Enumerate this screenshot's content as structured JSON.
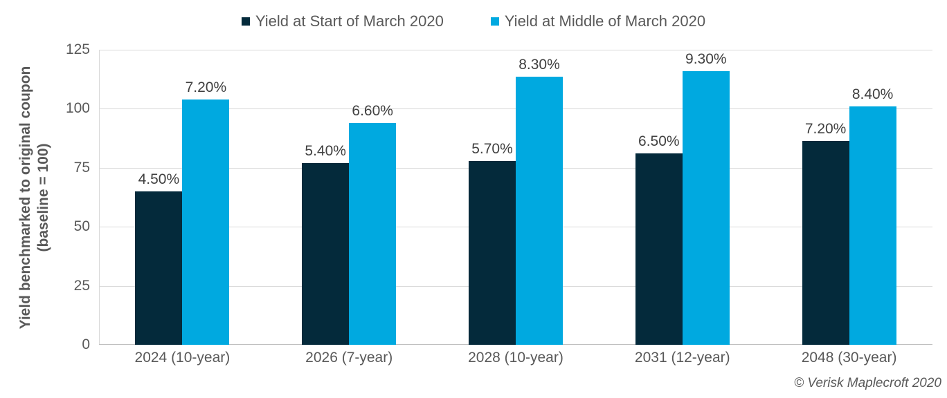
{
  "chart_data": {
    "type": "bar",
    "title": "",
    "categories": [
      "2024 (10-year)",
      "2026 (7-year)",
      "2028 (10-year)",
      "2031 (12-year)",
      "2048 (30-year)"
    ],
    "series": [
      {
        "name": "Yield at Start of March 2020",
        "color": "#042a3b",
        "values": [
          65,
          77,
          78,
          81,
          86.5
        ],
        "labels": [
          "4.50%",
          "5.40%",
          "5.70%",
          "6.50%",
          "7.20%"
        ]
      },
      {
        "name": "Yield at Middle of March 2020",
        "color": "#00a9e0",
        "values": [
          104,
          94,
          113.5,
          116,
          101
        ],
        "labels": [
          "7.20%",
          "6.60%",
          "8.30%",
          "9.30%",
          "8.40%"
        ]
      }
    ],
    "xlabel": "",
    "ylabel_line1": "Yield benchmarked to original coupon",
    "ylabel_line2": "(baseline = 100)",
    "yticks": [
      0,
      25,
      50,
      75,
      100,
      125
    ],
    "ylim": [
      0,
      125
    ],
    "grid": true,
    "legend_position": "top",
    "colors": {
      "grid": "#d9d9d9",
      "baseline": "#bfbfbf",
      "tick_text": "#595959",
      "data_label_text": "#404040"
    }
  },
  "footer": {
    "credit": "© Verisk Maplecroft 2020"
  }
}
